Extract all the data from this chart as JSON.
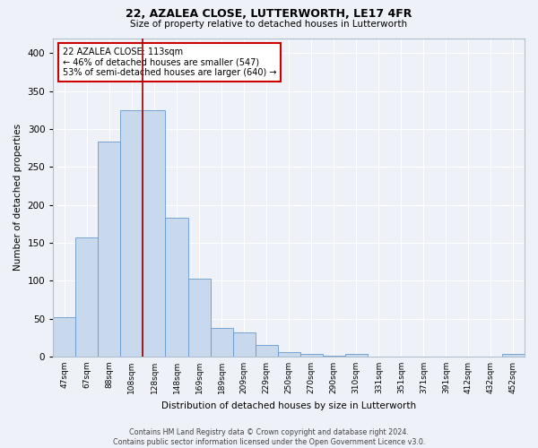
{
  "title": "22, AZALEA CLOSE, LUTTERWORTH, LE17 4FR",
  "subtitle": "Size of property relative to detached houses in Lutterworth",
  "xlabel": "Distribution of detached houses by size in Lutterworth",
  "ylabel": "Number of detached properties",
  "bar_color": "#c8d9ee",
  "bar_edge_color": "#6699cc",
  "background_color": "#eef2f8",
  "grid_color": "#ffffff",
  "categories": [
    "47sqm",
    "67sqm",
    "88sqm",
    "108sqm",
    "128sqm",
    "148sqm",
    "169sqm",
    "189sqm",
    "209sqm",
    "229sqm",
    "250sqm",
    "270sqm",
    "290sqm",
    "310sqm",
    "331sqm",
    "351sqm",
    "371sqm",
    "391sqm",
    "412sqm",
    "432sqm",
    "452sqm"
  ],
  "values": [
    52,
    157,
    283,
    325,
    325,
    183,
    103,
    38,
    32,
    15,
    6,
    4,
    1,
    4,
    0,
    0,
    0,
    0,
    0,
    0,
    4
  ],
  "ylim": [
    0,
    420
  ],
  "yticks": [
    0,
    50,
    100,
    150,
    200,
    250,
    300,
    350,
    400
  ],
  "property_line_x": 3.5,
  "property_line_color": "#990000",
  "annotation_text": "22 AZALEA CLOSE: 113sqm\n← 46% of detached houses are smaller (547)\n53% of semi-detached houses are larger (640) →",
  "annotation_box_color": "#ffffff",
  "annotation_box_edge_color": "#cc0000",
  "footnote": "Contains HM Land Registry data © Crown copyright and database right 2024.\nContains public sector information licensed under the Open Government Licence v3.0.",
  "figsize": [
    6.0,
    5.0
  ],
  "dpi": 100
}
